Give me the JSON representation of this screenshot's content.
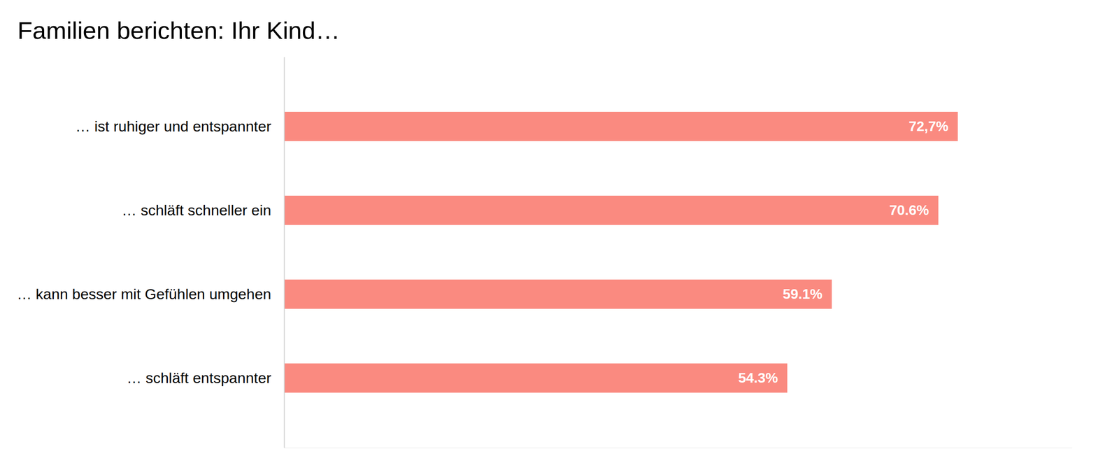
{
  "chart_data": {
    "type": "bar",
    "orientation": "horizontal",
    "title": "Familien berichten: Ihr Kind…",
    "categories": [
      "… ist ruhiger und entspannter",
      "… schläft schneller ein",
      "… kann besser mit Gefühlen umgehen",
      "… schläft entspannter"
    ],
    "values": [
      72.7,
      70.6,
      59.1,
      54.3
    ],
    "value_labels": [
      "72,7%",
      "70.6%",
      "59.1%",
      "54.3%"
    ],
    "data_labels": true,
    "color": "#fa8a80",
    "xlim": [
      0,
      85
    ],
    "tick_labels": "y",
    "grid": false
  }
}
